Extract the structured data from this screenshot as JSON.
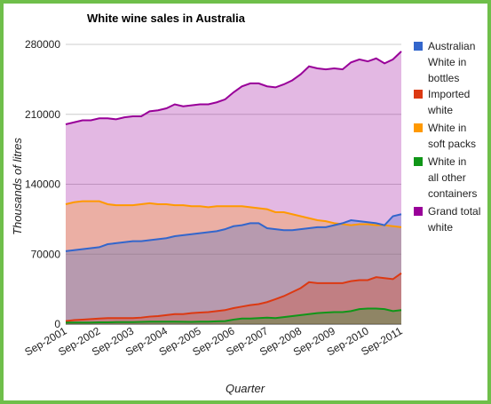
{
  "chart_data": {
    "type": "area",
    "title": "White wine sales in Australia",
    "xlabel": "Quarter",
    "ylabel": "Thousands of litres",
    "ylim": [
      0,
      280000
    ],
    "yticks": [
      0,
      70000,
      140000,
      210000,
      280000
    ],
    "ytick_labels": [
      "0",
      "70000",
      "140000",
      "210000",
      "280000"
    ],
    "xtick_labels": [
      "Sep-2001",
      "Sep-2002",
      "Sep-2003",
      "Sep-2004",
      "Sep-2005",
      "Sep-2006",
      "Sep-2007",
      "Sep-2008",
      "Sep-2009",
      "Sep-2010",
      "Sep-2011"
    ],
    "grid": true,
    "legend": "right",
    "stacked": false,
    "x": [
      "Sep-2001",
      "Dec-2001",
      "Mar-2002",
      "Jun-2002",
      "Sep-2002",
      "Dec-2002",
      "Mar-2003",
      "Jun-2003",
      "Sep-2003",
      "Dec-2003",
      "Mar-2004",
      "Jun-2004",
      "Sep-2004",
      "Dec-2004",
      "Mar-2005",
      "Jun-2005",
      "Sep-2005",
      "Dec-2005",
      "Mar-2006",
      "Jun-2006",
      "Sep-2006",
      "Dec-2006",
      "Mar-2007",
      "Jun-2007",
      "Sep-2007",
      "Dec-2007",
      "Mar-2008",
      "Jun-2008",
      "Sep-2008",
      "Dec-2008",
      "Mar-2009",
      "Jun-2009",
      "Sep-2009",
      "Dec-2009",
      "Mar-2010",
      "Jun-2010",
      "Sep-2010",
      "Dec-2010",
      "Mar-2011",
      "Jun-2011",
      "Sep-2011"
    ],
    "series": [
      {
        "name": "Grand total white",
        "color": "#990099",
        "values": [
          200000,
          202000,
          204000,
          204000,
          206000,
          206000,
          205000,
          207000,
          208000,
          208000,
          213000,
          214000,
          216000,
          220000,
          218000,
          219000,
          220000,
          220000,
          222000,
          225000,
          232000,
          238000,
          241000,
          241000,
          238000,
          237000,
          240000,
          244000,
          250000,
          258000,
          256000,
          255000,
          256000,
          255000,
          262000,
          265000,
          263000,
          266000,
          261000,
          265000,
          273000
        ]
      },
      {
        "name": "White in soft packs",
        "color": "#ff9900",
        "values": [
          120000,
          122000,
          123000,
          123000,
          123000,
          120000,
          119000,
          119000,
          119000,
          120000,
          121000,
          120000,
          120000,
          119000,
          119000,
          118000,
          118000,
          117000,
          118000,
          118000,
          118000,
          118000,
          117000,
          116000,
          115000,
          112000,
          112000,
          110000,
          108000,
          106000,
          104000,
          103000,
          101000,
          100000,
          99000,
          100000,
          100000,
          99000,
          99000,
          98000,
          97000
        ]
      },
      {
        "name": "Australian White in bottles",
        "color": "#3366cc",
        "values": [
          73000,
          74000,
          75000,
          76000,
          77000,
          80000,
          81000,
          82000,
          83000,
          83000,
          84000,
          85000,
          86000,
          88000,
          89000,
          90000,
          91000,
          92000,
          93000,
          95000,
          98000,
          99000,
          101000,
          101000,
          96000,
          95000,
          94000,
          94000,
          95000,
          96000,
          97000,
          97000,
          99000,
          101000,
          104000,
          103000,
          102000,
          101000,
          99000,
          108000,
          110000
        ]
      },
      {
        "name": "Imported white",
        "color": "#dc3912",
        "values": [
          3000,
          4000,
          4500,
          5000,
          5500,
          6000,
          6000,
          6000,
          6000,
          6500,
          7500,
          8000,
          9000,
          10000,
          10000,
          11000,
          11500,
          12000,
          13000,
          14000,
          16000,
          17500,
          19000,
          20000,
          22000,
          25000,
          28000,
          32000,
          36000,
          42000,
          41000,
          41000,
          41000,
          41000,
          43000,
          44000,
          44000,
          47000,
          46000,
          45000,
          51000
        ]
      },
      {
        "name": "White in all other containers",
        "color": "#109618",
        "values": [
          1500,
          1500,
          1500,
          1500,
          1800,
          1800,
          2000,
          2000,
          2000,
          2200,
          2500,
          2500,
          2500,
          2500,
          2300,
          2200,
          2500,
          2500,
          2800,
          3000,
          4500,
          5500,
          5500,
          6000,
          6500,
          6000,
          7000,
          8000,
          9000,
          10000,
          11000,
          11500,
          12000,
          12000,
          13000,
          15000,
          15500,
          15500,
          15000,
          13000,
          14000
        ]
      }
    ]
  }
}
